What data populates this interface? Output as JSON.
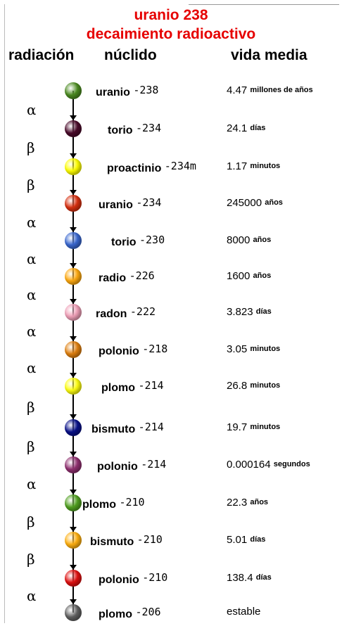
{
  "title": {
    "line1": "uranio 238",
    "line2": "decaimiento radioactivo"
  },
  "headers": {
    "radiation": "radiación",
    "nuclide": "núclido",
    "half_life": "vida media"
  },
  "colors": {
    "title": "#e60000"
  },
  "chain": [
    {
      "name": "uranio",
      "mass": "-238",
      "value": "4.47",
      "unit": "millones de años",
      "color": "#4a8a20"
    },
    {
      "name": "torio",
      "mass": "-234",
      "value": "24.1",
      "unit": "días",
      "color": "#4a0a2a"
    },
    {
      "name": "proactinio",
      "mass": "-234m",
      "value": "1.17",
      "unit": "minutos",
      "color": "#ffff00"
    },
    {
      "name": "uranio",
      "mass": "-234",
      "value": "245000",
      "unit": "años",
      "color": "#d83010"
    },
    {
      "name": "torio",
      "mass": "-230",
      "value": "8000",
      "unit": "años",
      "color": "#3a68d0"
    },
    {
      "name": "radio",
      "mass": "-226",
      "value": "1600",
      "unit": "años",
      "color": "#ffaa10"
    },
    {
      "name": "radon",
      "mass": "-222",
      "value": "3.823",
      "unit": "días",
      "color": "#f0a0b8"
    },
    {
      "name": "polonio",
      "mass": "-218",
      "value": "3.05",
      "unit": "minutos",
      "color": "#e08010"
    },
    {
      "name": "plomo",
      "mass": "-214",
      "value": "26.8",
      "unit": "minutos",
      "color": "#ffff10"
    },
    {
      "name": "bismuto",
      "mass": "-214",
      "value": "19.7",
      "unit": "minutos",
      "color": "#081088"
    },
    {
      "name": "polonio",
      "mass": "-214",
      "value": "0.000164",
      "unit": "segundos",
      "color": "#903070"
    },
    {
      "name": "plomo",
      "mass": "-210",
      "value": "22.3",
      "unit": "años",
      "color": "#50a020"
    },
    {
      "name": "bismuto",
      "mass": "-210",
      "value": "5.01",
      "unit": "días",
      "color": "#ffb010"
    },
    {
      "name": "polonio",
      "mass": "-210",
      "value": "138.4",
      "unit": "días",
      "color": "#e01010"
    },
    {
      "name": "plomo",
      "mass": "-206",
      "value": "estable",
      "unit": "",
      "color": "#606060"
    }
  ],
  "radiations": [
    "α",
    "β",
    "β",
    "α",
    "α",
    "α",
    "α",
    "α",
    "β",
    "β",
    "α",
    "β",
    "β",
    "α"
  ]
}
